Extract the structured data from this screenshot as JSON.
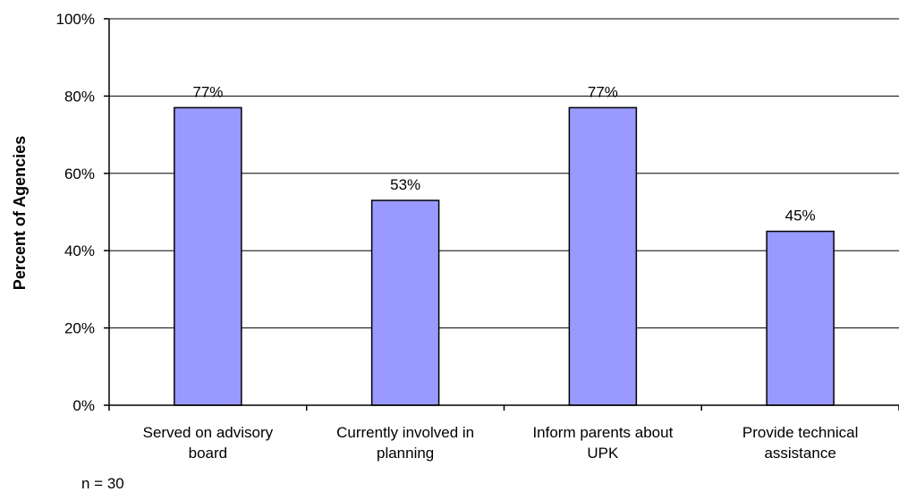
{
  "chart_data": {
    "type": "bar",
    "categories": [
      [
        "Served on advisory",
        "board"
      ],
      [
        "Currently involved in",
        "planning"
      ],
      [
        "Inform parents about",
        "UPK"
      ],
      [
        "Provide technical",
        "assistance"
      ]
    ],
    "values": [
      77,
      53,
      77,
      45
    ],
    "data_labels": [
      "77%",
      "53%",
      "77%",
      "45%"
    ],
    "ylabel": "Percent of Agencies",
    "xlabel": "",
    "title": "",
    "ylim": [
      0,
      100
    ],
    "yticks": [
      0,
      20,
      40,
      60,
      80,
      100
    ],
    "ytick_labels": [
      "0%",
      "20%",
      "40%",
      "60%",
      "80%",
      "100%"
    ],
    "grid": true,
    "bar_color": "#9999ff",
    "bar_edge_color": "#000000",
    "note": "n = 30"
  }
}
